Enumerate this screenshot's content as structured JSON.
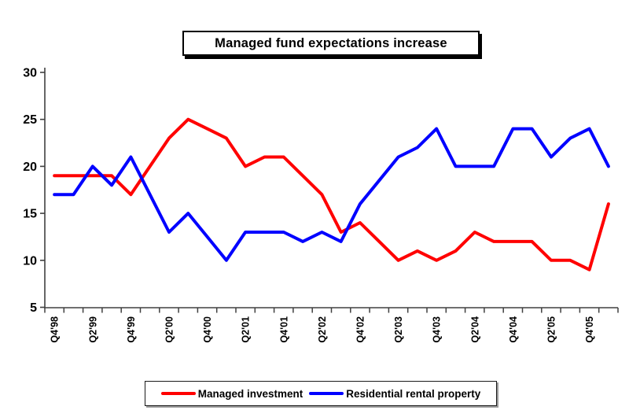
{
  "title": "Managed fund expectations increase",
  "chart_data": {
    "type": "line",
    "x": [
      "Q4'98",
      "Q1'99",
      "Q2'99",
      "Q3'99",
      "Q4'99",
      "Q1'00",
      "Q2'00",
      "Q3'00",
      "Q4'00",
      "Q1'01",
      "Q2'01",
      "Q3'01",
      "Q4'01",
      "Q1'02",
      "Q2'02",
      "Q3'02",
      "Q4'02",
      "Q1'03",
      "Q2'03",
      "Q3'03",
      "Q4'03",
      "Q1'04",
      "Q2'04",
      "Q3'04",
      "Q4'04",
      "Q1'05",
      "Q2'05",
      "Q3'05",
      "Q4'05",
      "Q1'06"
    ],
    "x_label_every": 2,
    "x_labels_shown": [
      "Q4'98",
      "Q2'99",
      "Q4'99",
      "Q2'00",
      "Q4'00",
      "Q2'01",
      "Q4'01",
      "Q2'02",
      "Q4'02",
      "Q2'03",
      "Q4'03",
      "Q2'04",
      "Q4'04",
      "Q2'05",
      "Q4'05"
    ],
    "ylim": [
      5,
      30
    ],
    "yticks": [
      30,
      25,
      20,
      15,
      10,
      5
    ],
    "grid": false,
    "legend_position": "bottom",
    "axis_color": "#404040",
    "series": [
      {
        "name": "Managed investment",
        "color": "#ff0000",
        "values": [
          19,
          19,
          19,
          19,
          17,
          20,
          23,
          25,
          24,
          23,
          20,
          21,
          21,
          19,
          17,
          13,
          14,
          12,
          10,
          11,
          10,
          11,
          13,
          12,
          12,
          12,
          10,
          10,
          9,
          16
        ]
      },
      {
        "name": "Residential rental property",
        "color": "#0000ff",
        "values": [
          17,
          17,
          20,
          18,
          21,
          17,
          13,
          15,
          12.5,
          10,
          13,
          13,
          13,
          12,
          13,
          12,
          16,
          18.5,
          21,
          22,
          24,
          20,
          20,
          20,
          24,
          24,
          21,
          23,
          24,
          20
        ]
      }
    ]
  }
}
